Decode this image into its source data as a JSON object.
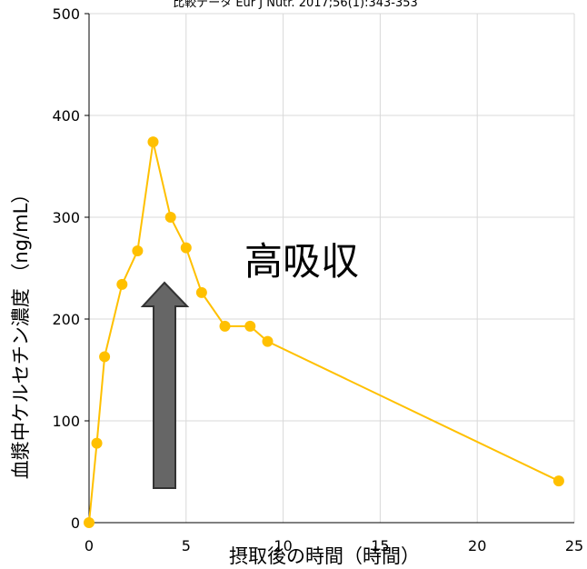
{
  "chart_data": {
    "type": "line",
    "title": "比較データ Eur J Nutr. 2017;56(1):343-353",
    "xlabel": "摂取後の時間（時間）",
    "ylabel": "血漿中ケルセチン濃度 （ng/mL）",
    "xlim": [
      0,
      25
    ],
    "ylim": [
      0,
      500
    ],
    "xticks": [
      0,
      5,
      10,
      15,
      20,
      25
    ],
    "yticks": [
      0,
      100,
      200,
      300,
      400,
      500
    ],
    "grid": true,
    "series": [
      {
        "color": "#FFC000",
        "marker": "circle",
        "x": [
          0,
          0.4,
          0.8,
          1.7,
          2.5,
          3.3,
          4.2,
          5.0,
          5.8,
          7.0,
          8.3,
          9.2,
          24.2
        ],
        "y": [
          0,
          78,
          163,
          234,
          267,
          374,
          300,
          270,
          226,
          193,
          193,
          178,
          41
        ]
      }
    ],
    "annotations": [
      {
        "text": "高吸収"
      }
    ],
    "arrow": {
      "direction": "up",
      "color": "#666666",
      "outline": "#333333"
    },
    "colors": {
      "grid": "#d9d9d9",
      "axis": "#000000"
    }
  }
}
